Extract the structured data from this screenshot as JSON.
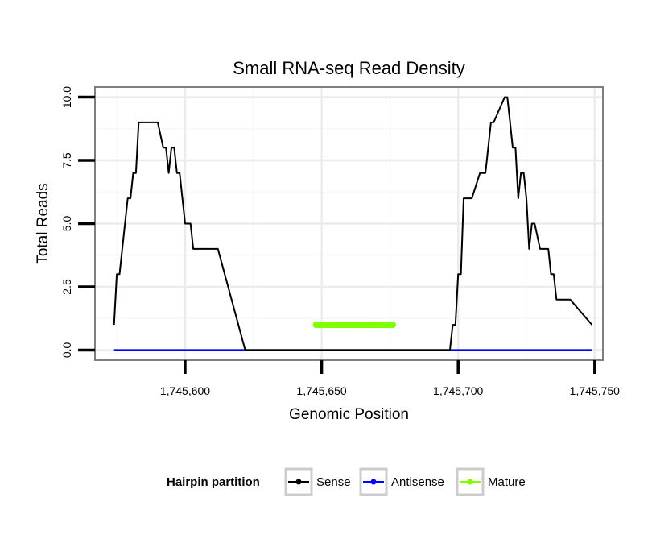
{
  "chart_data": {
    "type": "line",
    "title": "Small RNA-seq Read Density",
    "xlabel": "Genomic Position",
    "ylabel": "Total Reads",
    "xlim": [
      1745567,
      1745753
    ],
    "ylim": [
      -0.4,
      10.4
    ],
    "x_ticks": [
      1745600,
      1745650,
      1745700,
      1745750
    ],
    "x_tick_labels": [
      "1,745,600",
      "1,745,650",
      "1,745,700",
      "1,745,750"
    ],
    "y_ticks": [
      0,
      2.5,
      5,
      7.5,
      10
    ],
    "y_tick_labels": [
      "0.0",
      "2.5",
      "5.0",
      "7.5",
      "10.0"
    ],
    "grid": true,
    "legend": {
      "title": "Hairpin partition",
      "position": "bottom",
      "entries": [
        "Sense",
        "Antisense",
        "Mature"
      ]
    },
    "series": [
      {
        "name": "Sense",
        "color": "#000000",
        "x": [
          1745574,
          1745575,
          1745576,
          1745577,
          1745578,
          1745579,
          1745580,
          1745581,
          1745582,
          1745583,
          1745584,
          1745585,
          1745590,
          1745592,
          1745593,
          1745594,
          1745595,
          1745596,
          1745597,
          1745598,
          1745599,
          1745600,
          1745601,
          1745602,
          1745603,
          1745604,
          1745605,
          1745612,
          1745622,
          1745648,
          1745649,
          1745676,
          1745677,
          1745697,
          1745698,
          1745699,
          1745700,
          1745701,
          1745702,
          1745703,
          1745704,
          1745705,
          1745708,
          1745709,
          1745710,
          1745712,
          1745713,
          1745717,
          1745718,
          1745719,
          1745720,
          1745721,
          1745722,
          1745723,
          1745724,
          1745725,
          1745726,
          1745727,
          1745728,
          1745730,
          1745731,
          1745733,
          1745734,
          1745735,
          1745736,
          1745737,
          1745741,
          1745749
        ],
        "values": [
          1,
          3,
          3,
          4,
          5,
          6,
          6,
          7,
          7,
          9,
          9,
          9,
          9,
          8,
          8,
          7,
          8,
          8,
          7,
          7,
          6,
          5,
          5,
          5,
          4,
          4,
          4,
          4,
          0,
          0,
          0,
          0,
          0,
          0,
          1,
          1,
          3,
          3,
          6,
          6,
          6,
          6,
          7,
          7,
          7,
          9,
          9,
          10,
          10,
          9,
          8,
          8,
          6,
          7,
          7,
          6,
          4,
          5,
          5,
          4,
          4,
          4,
          3,
          3,
          2,
          2,
          2,
          1
        ]
      },
      {
        "name": "Antisense",
        "color": "#0000ff",
        "x": [
          1745574,
          1745749
        ],
        "values": [
          0,
          0
        ]
      },
      {
        "name": "Mature",
        "color": "#7fff00",
        "x": [
          1745648,
          1745676
        ],
        "values": [
          1,
          1
        ]
      }
    ]
  }
}
